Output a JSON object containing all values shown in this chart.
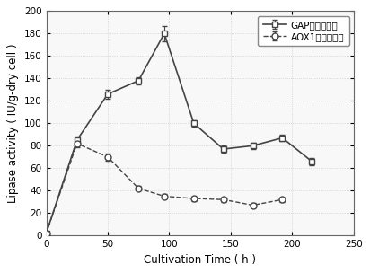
{
  "gap_x": [
    0,
    25,
    50,
    75,
    96,
    120,
    144,
    168,
    192,
    216
  ],
  "gap_y": [
    2,
    85,
    126,
    138,
    180,
    100,
    77,
    80,
    87,
    66
  ],
  "gap_yerr": [
    0,
    3,
    4,
    3,
    7,
    3,
    3,
    3,
    3,
    3
  ],
  "aox1_x": [
    0,
    25,
    50,
    75,
    96,
    120,
    144,
    168,
    192
  ],
  "aox1_y": [
    2,
    82,
    70,
    42,
    35,
    33,
    32,
    27,
    32
  ],
  "aox1_yerr": [
    0,
    3,
    3,
    2,
    2,
    2,
    2,
    2,
    2
  ],
  "gap_label": "GAP启动子酶活",
  "aox1_label": "AOX1启动子酶活",
  "xlabel": "Cultivation Time ( h )",
  "ylabel": "Lipase activity ( IU/g-dry cell )",
  "xlim": [
    0,
    250
  ],
  "ylim": [
    0,
    200
  ],
  "xticks": [
    0,
    50,
    100,
    150,
    200,
    250
  ],
  "yticks": [
    0,
    20,
    40,
    60,
    80,
    100,
    120,
    140,
    160,
    180,
    200
  ],
  "gap_color": "#444444",
  "aox1_color": "#444444",
  "background": "#ffffff",
  "plot_bg": "#f8f8f8",
  "grid_color": "#cccccc",
  "figsize": [
    4.12,
    3.04
  ],
  "dpi": 100
}
